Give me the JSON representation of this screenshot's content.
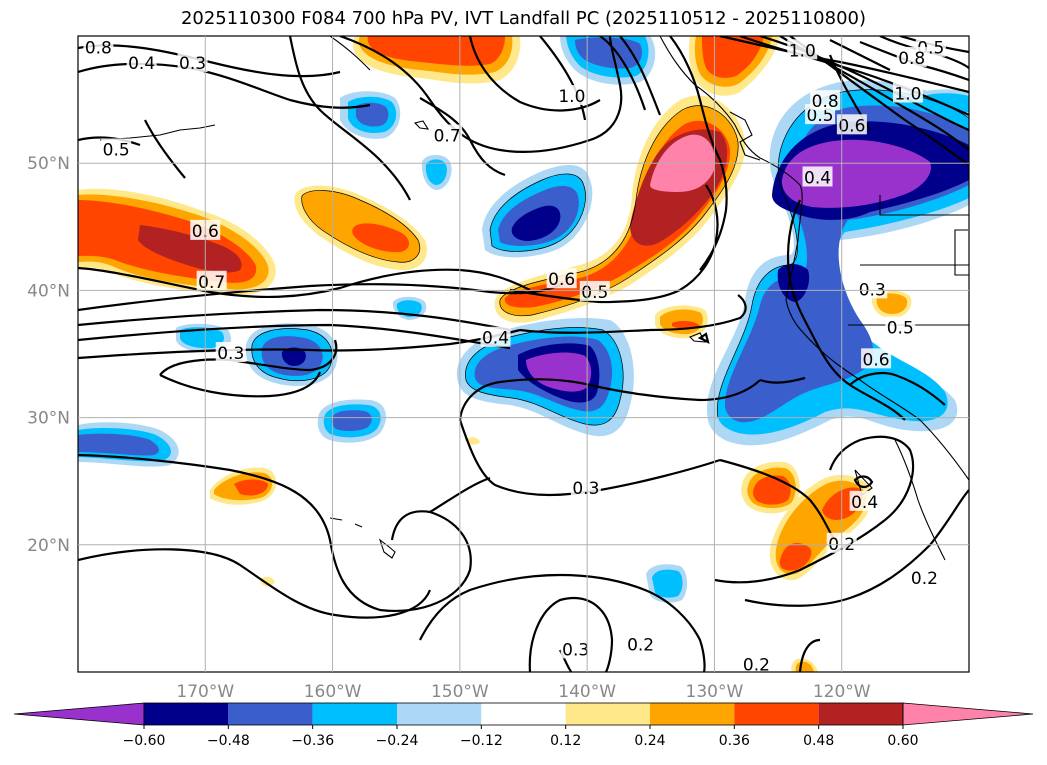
{
  "title": "2025110300 F084 700 hPa PV, IVT Landfall PC (2025110512 - 2025110800)",
  "chart_data": {
    "type": "map-contour",
    "title": "2025110300 F084 700 hPa PV, IVT Landfall PC (2025110512 - 2025110800)",
    "lat_ticks": [
      "20°N",
      "30°N",
      "40°N",
      "50°N"
    ],
    "lon_ticks": [
      "170°W",
      "160°W",
      "150°W",
      "140°W",
      "130°W",
      "120°W"
    ],
    "lon_range": [
      -180,
      -110
    ],
    "lat_range": [
      10,
      60
    ],
    "colorbar": {
      "ticks": [
        "−0.60",
        "−0.48",
        "−0.36",
        "−0.24",
        "−0.12",
        "0.12",
        "0.24",
        "0.36",
        "0.48",
        "0.60"
      ],
      "colors": [
        "#9932CC",
        "#00008B",
        "#3A5FCD",
        "#00BFFF",
        "#ADD8F5",
        "#FFFFFF",
        "#FFE88A",
        "#FFA500",
        "#FF4500",
        "#B22222",
        "#FF82AB"
      ]
    },
    "contour_labels": [
      {
        "text": "0.4",
        "lon": -175.0,
        "lat": 57.8
      },
      {
        "text": "0.3",
        "lon": -171.0,
        "lat": 57.8
      },
      {
        "text": "0.5",
        "lon": -177.0,
        "lat": 51.0
      },
      {
        "text": "0.6",
        "lon": -170.0,
        "lat": 44.6
      },
      {
        "text": "0.7",
        "lon": -169.5,
        "lat": 40.6
      },
      {
        "text": "0.3",
        "lon": -168.0,
        "lat": 35.0
      },
      {
        "text": "0.7",
        "lon": -151.0,
        "lat": 52.1
      },
      {
        "text": "1.0",
        "lon": -141.2,
        "lat": 55.2
      },
      {
        "text": "0.6",
        "lon": -142.0,
        "lat": 40.8
      },
      {
        "text": "0.5",
        "lon": -139.4,
        "lat": 39.8
      },
      {
        "text": "0.4",
        "lon": -147.2,
        "lat": 36.2
      },
      {
        "text": "0.3",
        "lon": -140.1,
        "lat": 24.4
      },
      {
        "text": "0.3",
        "lon": -140.9,
        "lat": 11.7
      },
      {
        "text": "0.2",
        "lon": -135.8,
        "lat": 12.1
      },
      {
        "text": "0.2",
        "lon": -126.7,
        "lat": 10.5
      },
      {
        "text": "0.8",
        "lon": -178.4,
        "lat": 59.0
      },
      {
        "text": "1.0",
        "lon": -123.1,
        "lat": 58.8
      },
      {
        "text": "0.5",
        "lon": -113.0,
        "lat": 59.0
      },
      {
        "text": "0.8",
        "lon": -114.5,
        "lat": 58.2
      },
      {
        "text": "0.5",
        "lon": -121.7,
        "lat": 53.7
      },
      {
        "text": "0.6",
        "lon": -119.2,
        "lat": 52.9
      },
      {
        "text": "0.8",
        "lon": -121.3,
        "lat": 54.8
      },
      {
        "text": "1.0",
        "lon": -114.8,
        "lat": 55.4
      },
      {
        "text": "0.4",
        "lon": -121.9,
        "lat": 48.8
      },
      {
        "text": "0.3",
        "lon": -117.6,
        "lat": 40.0
      },
      {
        "text": "0.5",
        "lon": -115.4,
        "lat": 37.0
      },
      {
        "text": "0.6",
        "lon": -117.3,
        "lat": 34.5
      },
      {
        "text": "0.4",
        "lon": -118.2,
        "lat": 23.3
      },
      {
        "text": "0.2",
        "lon": -120.0,
        "lat": 20.0
      },
      {
        "text": "0.2",
        "lon": -113.5,
        "lat": 17.3
      }
    ]
  }
}
